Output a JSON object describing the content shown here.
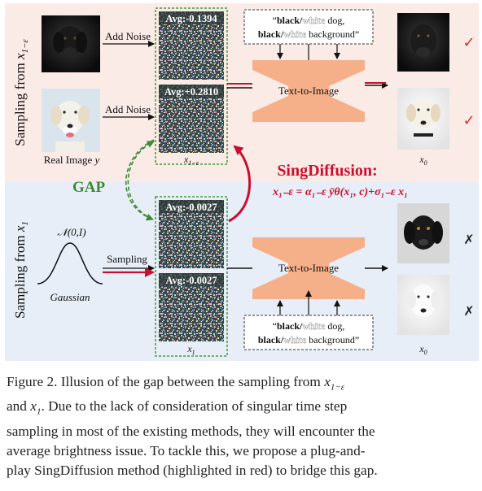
{
  "panel_top": {
    "side_label": "Sampling from ",
    "side_label_sub": "x",
    "side_label_subscript": "1−ε",
    "arrow1_label": "Add Noise",
    "arrow2_label": "Add Noise",
    "real_image_label": "Real Image ",
    "real_image_var": "y",
    "avg1": "Avg:-0.1394",
    "avg2": "Avg:+0.2810",
    "noise_label": "x",
    "noise_label_sub": "1−ε",
    "prompt_line1_b1": "black/",
    "prompt_line1_w1": "white",
    "prompt_line1_rest": " dog,",
    "prompt_line2_b1": "black/",
    "prompt_line2_w1": "white",
    "prompt_line2_rest": " background”",
    "prompt_open_quote": "“",
    "model_label": "Text-to-Image",
    "output_label": "x",
    "output_label_sub": "0",
    "check1": "✓",
    "check2": "✓"
  },
  "gap_label": "GAP",
  "sing": {
    "title": "SingDiffusion:",
    "formula": "x₁₋ε = α₁₋ε ȳθ(x₁, c)+σ₁₋ε x₁"
  },
  "panel_bottom": {
    "side_label": "Sampling from ",
    "side_label_sub": "x",
    "side_label_subscript": "1",
    "gaussian_label": "Gaussian",
    "gaussian_formula": "𝒩(0,I)",
    "arrow_label": "Sampling",
    "avg1": "Avg:-0.0027",
    "avg2": "Avg:-0.0027",
    "noise_label": "x",
    "noise_label_sub": "1",
    "model_label": "Text-to-Image",
    "prompt_line1_b1": "black/",
    "prompt_line1_w1": "white",
    "prompt_line1_rest": " dog,",
    "prompt_line2_b1": "black/",
    "prompt_line2_w1": "white",
    "prompt_line2_rest": " background”",
    "prompt_open_quote": "“",
    "output_label": "x",
    "output_label_sub": "0",
    "cross1": "✗",
    "cross2": "✗"
  },
  "caption": {
    "line1": "Figure 2.  Illusion of the gap between the sampling from ",
    "line1_var": "x",
    "line1_sub": "1−ε",
    "line2_a": "and ",
    "line2_var": "x",
    "line2_sub": "1",
    "line2_b": ".  Due to the lack of consideration of singular time step",
    "line3": "sampling in most of the existing methods, they will encounter the",
    "line4": "average brightness issue.  To tackle this, we propose a plug-and-",
    "line5": "play SingDiffusion method (highlighted in red) to bridge this gap."
  },
  "colors": {
    "top_bg": "#fbebe6",
    "bottom_bg": "#e7eef7",
    "funnel": "#f5b08a",
    "red": "#c8102e",
    "green": "#3d8a35",
    "check": "#d0312d"
  }
}
